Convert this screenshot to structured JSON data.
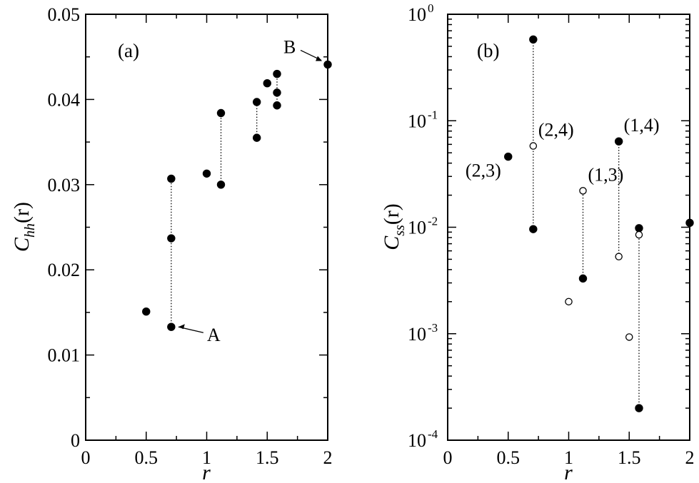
{
  "chart_data": [
    {
      "type": "scatter",
      "panel_label": "(a)",
      "xlabel": "r",
      "ylabel": {
        "main": "C",
        "sub": "hh",
        "arg": "(r)"
      },
      "xlim": [
        0,
        2
      ],
      "ylim": [
        0,
        0.05
      ],
      "yscale": "linear",
      "xticks": [
        "0",
        "0.5",
        "1",
        "1.5",
        "2"
      ],
      "yticks": [
        "0",
        "0.01",
        "0.02",
        "0.03",
        "0.04",
        "0.05"
      ],
      "points": [
        {
          "x": 0.5,
          "y": 0.0151,
          "filled": true
        },
        {
          "x": 0.707,
          "y": 0.0307,
          "filled": true
        },
        {
          "x": 0.707,
          "y": 0.0237,
          "filled": true
        },
        {
          "x": 0.707,
          "y": 0.0133,
          "filled": true
        },
        {
          "x": 1.0,
          "y": 0.0313,
          "filled": true
        },
        {
          "x": 1.118,
          "y": 0.0384,
          "filled": true
        },
        {
          "x": 1.118,
          "y": 0.03,
          "filled": true
        },
        {
          "x": 1.414,
          "y": 0.0397,
          "filled": true
        },
        {
          "x": 1.414,
          "y": 0.0355,
          "filled": true
        },
        {
          "x": 1.5,
          "y": 0.0419,
          "filled": true
        },
        {
          "x": 1.581,
          "y": 0.043,
          "filled": true
        },
        {
          "x": 1.581,
          "y": 0.0408,
          "filled": true
        },
        {
          "x": 1.581,
          "y": 0.0393,
          "filled": true
        },
        {
          "x": 2.0,
          "y": 0.0441,
          "filled": true
        }
      ],
      "dotted_links": [
        {
          "x": 0.707,
          "y1": 0.0133,
          "y2": 0.0307
        },
        {
          "x": 1.118,
          "y1": 0.03,
          "y2": 0.0384
        },
        {
          "x": 1.414,
          "y1": 0.0355,
          "y2": 0.0397
        },
        {
          "x": 1.581,
          "y1": 0.0393,
          "y2": 0.043
        }
      ],
      "annotations": [
        {
          "text": "A",
          "x": 0.707,
          "y": 0.0133
        },
        {
          "text": "B",
          "x": 2.0,
          "y": 0.0441
        }
      ]
    },
    {
      "type": "scatter",
      "panel_label": "(b)",
      "xlabel": "r",
      "ylabel": {
        "main": "C",
        "sub": "ss",
        "arg": "(r)"
      },
      "xlim": [
        0,
        2
      ],
      "ylim": [
        0.0001,
        1
      ],
      "yscale": "log",
      "xticks": [
        "0",
        "0.5",
        "1",
        "1.5",
        "2"
      ],
      "yticks": [
        {
          "base": "10",
          "exp": "0"
        },
        {
          "base": "10",
          "exp": "-1"
        },
        {
          "base": "10",
          "exp": "-2"
        },
        {
          "base": "10",
          "exp": "-3"
        },
        {
          "base": "10",
          "exp": "-4"
        }
      ],
      "points": [
        {
          "x": 0.5,
          "y": 0.046,
          "filled": true
        },
        {
          "x": 0.707,
          "y": 0.58,
          "filled": true
        },
        {
          "x": 0.707,
          "y": 0.058,
          "filled": false
        },
        {
          "x": 0.707,
          "y": 0.0096,
          "filled": true
        },
        {
          "x": 1.0,
          "y": 0.002,
          "filled": false
        },
        {
          "x": 1.118,
          "y": 0.022,
          "filled": false
        },
        {
          "x": 1.118,
          "y": 0.0033,
          "filled": true
        },
        {
          "x": 1.414,
          "y": 0.064,
          "filled": true
        },
        {
          "x": 1.414,
          "y": 0.0053,
          "filled": false
        },
        {
          "x": 1.5,
          "y": 0.00093,
          "filled": false
        },
        {
          "x": 1.581,
          "y": 0.0098,
          "filled": true
        },
        {
          "x": 1.581,
          "y": 0.0085,
          "filled": false
        },
        {
          "x": 1.581,
          "y": 0.0002,
          "filled": true
        },
        {
          "x": 2.0,
          "y": 0.011,
          "filled": true
        }
      ],
      "dotted_links": [
        {
          "x": 0.707,
          "y1": 0.0096,
          "y2": 0.58
        },
        {
          "x": 1.118,
          "y1": 0.0033,
          "y2": 0.022
        },
        {
          "x": 1.414,
          "y1": 0.0053,
          "y2": 0.064
        },
        {
          "x": 1.581,
          "y1": 0.0002,
          "y2": 0.0098
        }
      ],
      "annotations": [
        {
          "text": "(2,3)",
          "x": 0.5,
          "y": 0.046
        },
        {
          "text": "(2,4)",
          "x": 0.707,
          "y": 0.058
        },
        {
          "text": "(1,3)",
          "x": 1.118,
          "y": 0.022
        },
        {
          "text": "(1,4)",
          "x": 1.414,
          "y": 0.064
        }
      ]
    }
  ]
}
